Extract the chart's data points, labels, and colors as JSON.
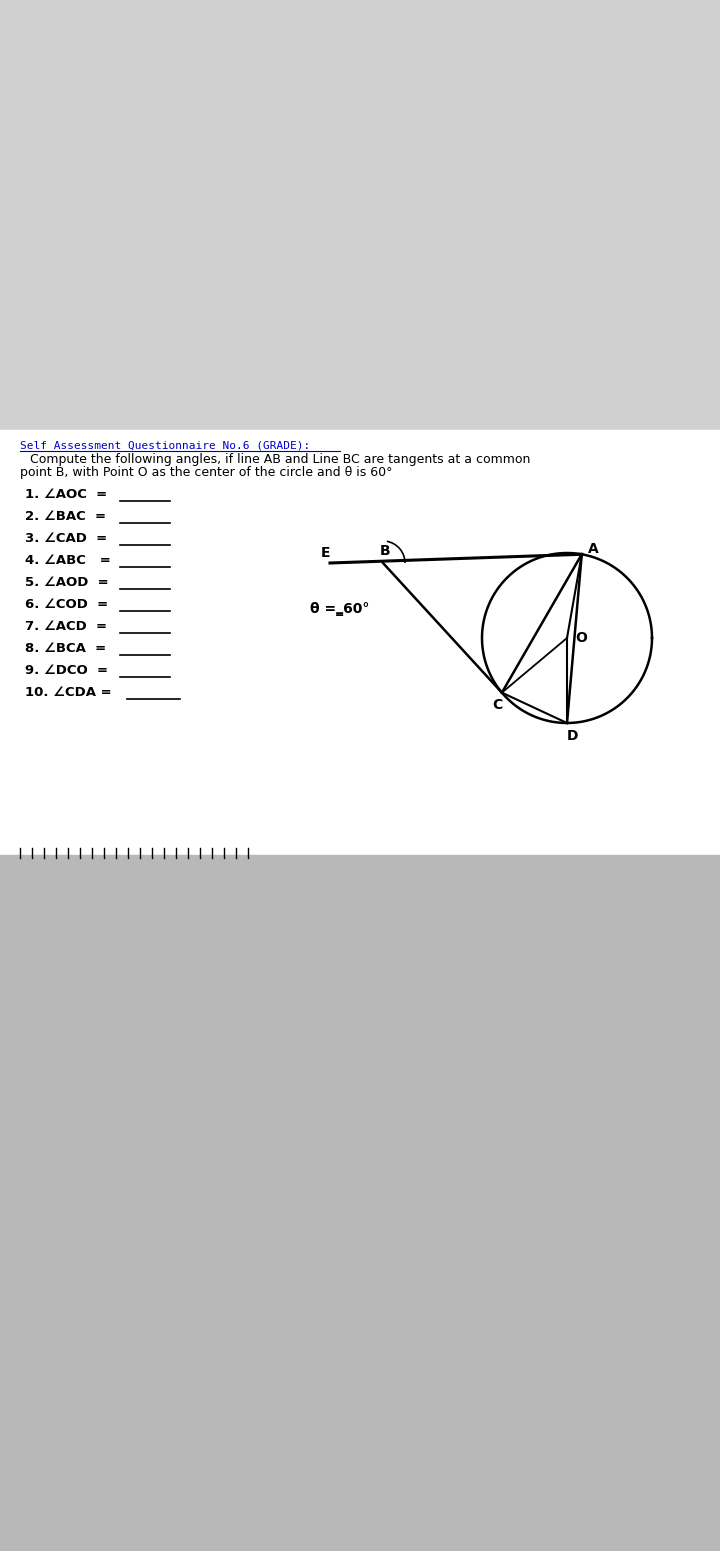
{
  "bg_top": "#d4d4d4",
  "bg_white": "#ffffff",
  "bg_bottom": "#b0b0b0",
  "header_text": "Self Assessment Questionnaire No.6 (GRADE):",
  "header_color": "#0000cc",
  "intro_text": "Compute the following angles, if line AB and Line BC are tangents at a common\npoint B, with Point O as the center of the circle and θ is 60°",
  "questions": [
    "1. ∠AOC  =",
    "2. ∠BAC  =",
    "3. ∠CAD  =",
    "4. ∠ABC   =",
    "5. ∠AOD  =",
    "6. ∠COD  =",
    "7. ∠ACD  =",
    "8. ∠BCA  =",
    "9. ∠DCO  =",
    "10. ∠CDA ="
  ],
  "theta_label": "θ =‗60°",
  "point_labels": [
    "E",
    "B",
    "A",
    "O",
    "C",
    "D"
  ],
  "underline_color": "#000000",
  "text_color": "#000000",
  "line_color": "#000000"
}
